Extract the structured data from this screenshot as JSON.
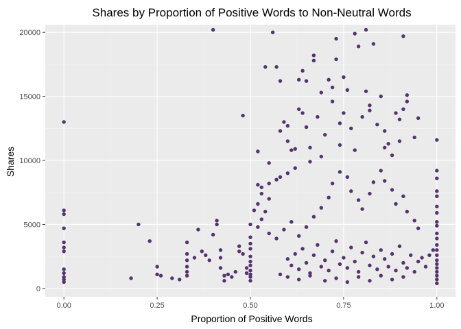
{
  "chart_data": {
    "type": "scatter",
    "title": "Shares by Proportion of Positive Words to Non-Neutral Words",
    "xlabel": "Proportion of Positive Words",
    "ylabel": "Shares",
    "xlim": [
      -0.05,
      1.05
    ],
    "ylim": [
      -650,
      20600
    ],
    "x_ticks": [
      0.0,
      0.25,
      0.5,
      0.75,
      1.0
    ],
    "x_tick_labels": [
      "0.00",
      "0.25",
      "0.50",
      "0.75",
      "1.00"
    ],
    "y_ticks": [
      0,
      5000,
      10000,
      15000,
      20000
    ],
    "y_tick_labels": [
      "0",
      "5000",
      "10000",
      "15000",
      "20000"
    ],
    "grid": true,
    "legend": "none",
    "colors": {
      "point": "#55336e",
      "panel": "#ebebeb",
      "grid_major": "#ffffff",
      "grid_minor": "#f2f2f2"
    },
    "points": [
      [
        0.0,
        13000
      ],
      [
        0.0,
        6100
      ],
      [
        0.0,
        5800
      ],
      [
        0.0,
        4700
      ],
      [
        0.0,
        3600
      ],
      [
        0.0,
        3200
      ],
      [
        0.0,
        2900
      ],
      [
        0.0,
        1500
      ],
      [
        0.0,
        1200
      ],
      [
        0.0,
        900
      ],
      [
        0.0,
        700
      ],
      [
        0.0,
        500
      ],
      [
        0.18,
        800
      ],
      [
        0.2,
        5000
      ],
      [
        0.23,
        3700
      ],
      [
        0.25,
        1700
      ],
      [
        0.25,
        1100
      ],
      [
        0.26,
        1000
      ],
      [
        0.29,
        800
      ],
      [
        0.31,
        700
      ],
      [
        0.33,
        3600
      ],
      [
        0.33,
        2700
      ],
      [
        0.33,
        2200
      ],
      [
        0.33,
        1700
      ],
      [
        0.33,
        1300
      ],
      [
        0.33,
        1000
      ],
      [
        0.35,
        2400
      ],
      [
        0.36,
        4600
      ],
      [
        0.37,
        2900
      ],
      [
        0.38,
        2600
      ],
      [
        0.39,
        2200
      ],
      [
        0.4,
        20200
      ],
      [
        0.4,
        4200
      ],
      [
        0.41,
        5300
      ],
      [
        0.41,
        5000
      ],
      [
        0.42,
        3000
      ],
      [
        0.42,
        2400
      ],
      [
        0.42,
        1600
      ],
      [
        0.43,
        1000
      ],
      [
        0.43,
        600
      ],
      [
        0.44,
        1100
      ],
      [
        0.45,
        900
      ],
      [
        0.46,
        1300
      ],
      [
        0.47,
        3300
      ],
      [
        0.47,
        2900
      ],
      [
        0.48,
        2700
      ],
      [
        0.48,
        13500
      ],
      [
        0.49,
        1200
      ],
      [
        0.49,
        1600
      ],
      [
        0.5,
        5000
      ],
      [
        0.5,
        4000
      ],
      [
        0.5,
        3500
      ],
      [
        0.5,
        3100
      ],
      [
        0.5,
        2500
      ],
      [
        0.5,
        2100
      ],
      [
        0.5,
        1800
      ],
      [
        0.5,
        1400
      ],
      [
        0.5,
        1100
      ],
      [
        0.5,
        900
      ],
      [
        0.5,
        600
      ],
      [
        0.52,
        10700
      ],
      [
        0.52,
        8100
      ],
      [
        0.53,
        7900
      ],
      [
        0.54,
        17300
      ],
      [
        0.54,
        6000
      ],
      [
        0.55,
        9800
      ],
      [
        0.55,
        7000
      ],
      [
        0.56,
        20000
      ],
      [
        0.57,
        17300
      ],
      [
        0.57,
        8500
      ],
      [
        0.58,
        16200
      ],
      [
        0.58,
        12300
      ],
      [
        0.59,
        13000
      ],
      [
        0.6,
        12700
      ],
      [
        0.6,
        11500
      ],
      [
        0.61,
        10800
      ],
      [
        0.62,
        10900
      ],
      [
        0.63,
        16300
      ],
      [
        0.63,
        14000
      ],
      [
        0.64,
        17000
      ],
      [
        0.64,
        13700
      ],
      [
        0.65,
        16200
      ],
      [
        0.65,
        12600
      ],
      [
        0.66,
        11000
      ],
      [
        0.67,
        18200
      ],
      [
        0.67,
        17800
      ],
      [
        0.68,
        13400
      ],
      [
        0.69,
        15300
      ],
      [
        0.7,
        12000
      ],
      [
        0.71,
        16300
      ],
      [
        0.72,
        15700
      ],
      [
        0.72,
        14600
      ],
      [
        0.73,
        19500
      ],
      [
        0.73,
        17900
      ],
      [
        0.74,
        12900
      ],
      [
        0.75,
        16500
      ],
      [
        0.75,
        13700
      ],
      [
        0.76,
        15500
      ],
      [
        0.77,
        12500
      ],
      [
        0.78,
        19900
      ],
      [
        0.79,
        18900
      ],
      [
        0.8,
        13400
      ],
      [
        0.81,
        20200
      ],
      [
        0.81,
        15400
      ],
      [
        0.82,
        14300
      ],
      [
        0.83,
        19100
      ],
      [
        0.84,
        12800
      ],
      [
        0.85,
        15000
      ],
      [
        0.86,
        11000
      ],
      [
        0.87,
        11300
      ],
      [
        0.88,
        10400
      ],
      [
        0.89,
        13700
      ],
      [
        0.9,
        13200
      ],
      [
        0.91,
        19700
      ],
      [
        0.91,
        14000
      ],
      [
        0.92,
        15100
      ],
      [
        0.92,
        14600
      ],
      [
        0.95,
        13300
      ],
      [
        0.86,
        12300
      ],
      [
        0.82,
        13900
      ],
      [
        0.94,
        11800
      ],
      [
        0.9,
        11500
      ],
      [
        0.78,
        10800
      ],
      [
        0.74,
        11200
      ],
      [
        0.69,
        10300
      ],
      [
        0.66,
        9900
      ],
      [
        0.62,
        9400
      ],
      [
        0.6,
        9000
      ],
      [
        0.58,
        8700
      ],
      [
        0.55,
        8200
      ],
      [
        0.53,
        7400
      ],
      [
        0.52,
        6600
      ],
      [
        0.51,
        6100
      ],
      [
        0.53,
        5400
      ],
      [
        0.52,
        4800
      ],
      [
        0.55,
        4300
      ],
      [
        0.57,
        3900
      ],
      [
        0.59,
        4600
      ],
      [
        0.61,
        5200
      ],
      [
        0.63,
        4100
      ],
      [
        0.65,
        4800
      ],
      [
        0.67,
        5600
      ],
      [
        0.69,
        6300
      ],
      [
        0.71,
        7100
      ],
      [
        0.72,
        8200
      ],
      [
        0.74,
        9100
      ],
      [
        0.76,
        8700
      ],
      [
        0.77,
        7600
      ],
      [
        0.79,
        6900
      ],
      [
        0.8,
        6200
      ],
      [
        0.82,
        7400
      ],
      [
        0.83,
        8300
      ],
      [
        0.85,
        9200
      ],
      [
        0.86,
        8400
      ],
      [
        0.88,
        7700
      ],
      [
        0.89,
        6600
      ],
      [
        0.91,
        7200
      ],
      [
        0.92,
        6000
      ],
      [
        0.94,
        5300
      ],
      [
        0.95,
        4700
      ],
      [
        0.96,
        2400
      ],
      [
        0.97,
        1700
      ],
      [
        0.98,
        2600
      ],
      [
        0.99,
        3000
      ],
      [
        1.0,
        11600
      ],
      [
        1.0,
        9200
      ],
      [
        1.0,
        8600
      ],
      [
        1.0,
        7600
      ],
      [
        1.0,
        7200
      ],
      [
        1.0,
        6400
      ],
      [
        1.0,
        5900
      ],
      [
        1.0,
        5200
      ],
      [
        1.0,
        4900
      ],
      [
        1.0,
        4300
      ],
      [
        1.0,
        3900
      ],
      [
        1.0,
        3400
      ],
      [
        1.0,
        3000
      ],
      [
        1.0,
        2600
      ],
      [
        1.0,
        2200
      ],
      [
        1.0,
        1900
      ],
      [
        1.0,
        1600
      ],
      [
        1.0,
        1300
      ],
      [
        1.0,
        1000
      ],
      [
        1.0,
        700
      ],
      [
        1.0,
        400
      ],
      [
        0.6,
        2300
      ],
      [
        0.61,
        1800
      ],
      [
        0.62,
        2700
      ],
      [
        0.63,
        1500
      ],
      [
        0.64,
        3100
      ],
      [
        0.65,
        2000
      ],
      [
        0.66,
        1200
      ],
      [
        0.67,
        2600
      ],
      [
        0.68,
        3400
      ],
      [
        0.69,
        1700
      ],
      [
        0.7,
        2200
      ],
      [
        0.71,
        1400
      ],
      [
        0.72,
        2900
      ],
      [
        0.73,
        3700
      ],
      [
        0.74,
        1900
      ],
      [
        0.75,
        2400
      ],
      [
        0.76,
        1600
      ],
      [
        0.77,
        3200
      ],
      [
        0.78,
        2100
      ],
      [
        0.79,
        1300
      ],
      [
        0.8,
        2800
      ],
      [
        0.81,
        3600
      ],
      [
        0.82,
        1800
      ],
      [
        0.83,
        2500
      ],
      [
        0.84,
        1500
      ],
      [
        0.85,
        3000
      ],
      [
        0.86,
        2300
      ],
      [
        0.87,
        1700
      ],
      [
        0.88,
        2700
      ],
      [
        0.89,
        1400
      ],
      [
        0.9,
        3300
      ],
      [
        0.91,
        2000
      ],
      [
        0.92,
        1600
      ],
      [
        0.93,
        2600
      ],
      [
        0.94,
        1300
      ],
      [
        0.95,
        2100
      ],
      [
        0.58,
        1100
      ],
      [
        0.6,
        900
      ],
      [
        0.63,
        700
      ],
      [
        0.66,
        1000
      ],
      [
        0.7,
        600
      ],
      [
        0.73,
        800
      ],
      [
        0.76,
        500
      ],
      [
        0.79,
        900
      ],
      [
        0.82,
        600
      ],
      [
        0.85,
        1000
      ],
      [
        0.88,
        700
      ],
      [
        0.91,
        900
      ]
    ]
  }
}
